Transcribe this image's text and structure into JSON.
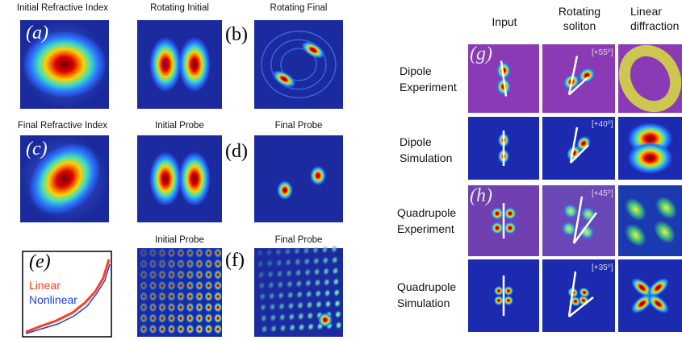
{
  "left": {
    "titles": [
      "Initial Refractive Index",
      "Rotating Initial",
      "Rotating Final",
      "Final Refractive Index",
      "Initial Probe",
      "Final Probe",
      "Initial Probe",
      "Final Probe"
    ],
    "letters": [
      "(a)",
      "(b)",
      "(c)",
      "(d)",
      "(e)",
      "(f)"
    ],
    "legend": [
      "Linear",
      "Nonlinear"
    ]
  },
  "right": {
    "columns": [
      "Input",
      "Rotating soliton",
      "Linear diffraction"
    ],
    "rows": [
      "Dipole Experiment",
      "Dipole Simulation",
      "Quadrupole Experiment",
      "Quadrupole Simulation"
    ],
    "letters": [
      "(g)",
      "(h)"
    ],
    "angles": [
      "[+55⁰]",
      "[+40⁰]",
      "[+45⁰]",
      "[+35⁰]"
    ]
  }
}
